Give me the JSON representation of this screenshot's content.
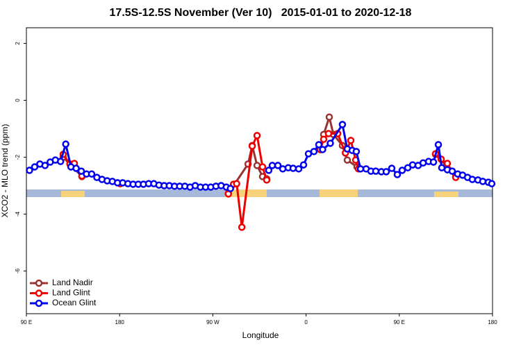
{
  "chart_data": {
    "type": "line",
    "title": "17.5S-12.5S November (Ver 10)   2015-01-01 to 2020-12-18",
    "x_label": "Longitude",
    "y_label": "XCO2 - MLO trend (ppm)",
    "xlim": [
      90,
      540
    ],
    "ylim": [
      -7.5,
      2.55
    ],
    "xticks": [
      {
        "value": 90,
        "label": "90 E"
      },
      180,
      {
        "value": 270,
        "label": "90 W"
      },
      {
        "value": 360,
        "label": "0"
      },
      {
        "value": 450,
        "label": "90 E"
      },
      {
        "value": 540,
        "label": "180"
      }
    ],
    "yticks": [
      -6,
      -4,
      -2,
      0,
      2
    ],
    "legend": "bottom-left",
    "series": [
      {
        "name": "Land Nadir",
        "color": "#993333",
        "x": [
          125.5,
          143.6,
          null,
          285,
          304,
          308,
          312.7,
          318,
          322,
          null,
          373.7,
          377,
          382.4,
          386.4,
          395.1,
          399.8,
          409.2,
          null,
          485,
          504.5
        ],
        "values": [
          -2.0,
          -2.68,
          null,
          -3.27,
          -2.24,
          -1.59,
          -2.29,
          -2.68,
          -2.76,
          null,
          -1.73,
          -1.2,
          -0.59,
          -1.2,
          -1.59,
          -2.1,
          -2.34,
          null,
          -1.9,
          -2.66
        ]
      },
      {
        "name": "Land Glint",
        "color": "#ee0000",
        "x": [
          125.5,
          132,
          136.3,
          143.6,
          null,
          180.5,
          null,
          285,
          290,
          293,
          298,
          308,
          312.7,
          318,
          322,
          null,
          373.7,
          377,
          381.7,
          390.5,
          398,
          403.2,
          407.9,
          410.6,
          null,
          485,
          490.4,
          496.4,
          504.5
        ],
        "values": [
          -1.9,
          -2.24,
          -2.22,
          -2.66,
          null,
          -2.93,
          null,
          -3.29,
          -2.95,
          -2.93,
          -4.46,
          -1.61,
          -1.24,
          -2.34,
          -2.8,
          null,
          -1.73,
          -1.37,
          -1.17,
          -1.17,
          -1.85,
          -1.41,
          -2.1,
          -2.41,
          null,
          -1.88,
          -2.07,
          -2.22,
          -2.71
        ]
      },
      {
        "name": "Ocean Glint",
        "color": "#0000ee",
        "x": [
          93,
          98,
          103,
          108,
          113,
          118,
          123,
          128,
          133,
          138,
          143,
          148,
          153,
          158,
          163,
          168,
          173,
          178,
          183,
          188,
          193,
          198,
          203,
          208,
          213,
          218,
          223,
          228,
          233,
          238,
          243,
          248,
          253,
          258,
          263,
          268,
          273,
          278,
          283,
          287,
          null,
          324,
          327.4,
          332.8,
          337.5,
          342.8,
          347.5,
          352.9,
          357.6,
          362.3,
          367.6,
          372.3,
          376,
          383.4,
          395.1,
          399.8,
          404.5,
          408.5,
          412.6,
          418,
          422.6,
          427.3,
          432.7,
          437.4,
          442.7,
          448.1,
          452.8,
          458.2,
          462.9,
          468.2,
          473,
          478.3,
          483,
          487.7,
          491,
          496.4,
          501.1,
          506.4,
          511.1,
          515.9,
          520.5,
          525.9,
          530.6,
          536,
          539.3
        ],
        "values": [
          -2.46,
          -2.34,
          -2.24,
          -2.29,
          -2.17,
          -2.1,
          -2.15,
          -1.54,
          -2.34,
          -2.39,
          -2.49,
          -2.59,
          -2.59,
          -2.71,
          -2.78,
          -2.83,
          -2.85,
          -2.9,
          -2.9,
          -2.93,
          -2.95,
          -2.95,
          -2.95,
          -2.93,
          -2.93,
          -2.98,
          -3.0,
          -3.0,
          -3.02,
          -3.02,
          -3.02,
          -3.05,
          -3.0,
          -3.05,
          -3.05,
          -3.05,
          -3.02,
          -3.0,
          -3.05,
          -3.1,
          null,
          -2.46,
          -2.29,
          -2.29,
          -2.41,
          -2.37,
          -2.39,
          -2.41,
          -2.27,
          -1.88,
          -1.8,
          -1.56,
          -1.73,
          -1.51,
          -0.85,
          -1.71,
          -1.76,
          -1.8,
          -2.41,
          -2.41,
          -2.49,
          -2.49,
          -2.51,
          -2.51,
          -2.39,
          -2.61,
          -2.46,
          -2.37,
          -2.27,
          -2.29,
          -2.2,
          -2.15,
          -2.17,
          -1.56,
          -2.37,
          -2.44,
          -2.49,
          -2.59,
          -2.63,
          -2.71,
          -2.78,
          -2.8,
          -2.85,
          -2.88,
          -2.93
        ]
      }
    ]
  }
}
